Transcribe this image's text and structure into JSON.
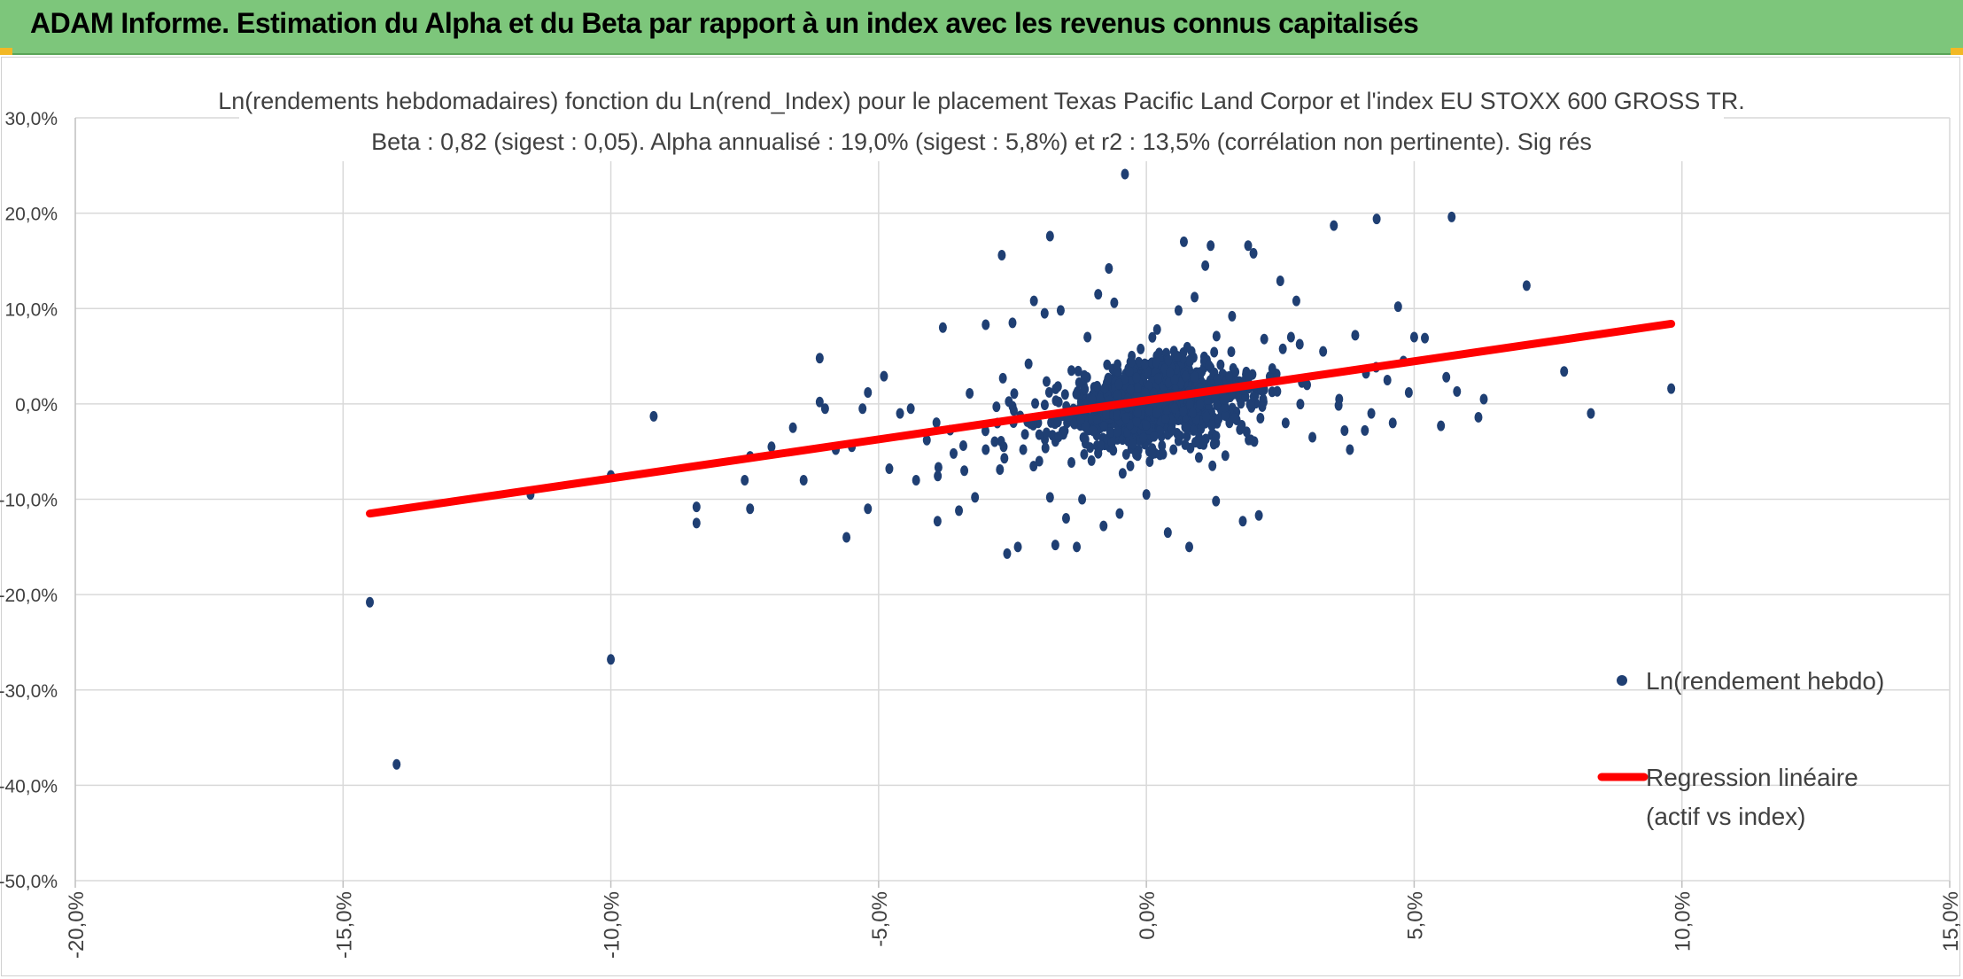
{
  "header": {
    "title": "ADAM Informe. Estimation du Alpha et du Beta par rapport à un index avec les revenus connus capitalisés"
  },
  "colors": {
    "banner": "#7dc67b",
    "points": "#1f3f73",
    "regression": "#ff0000",
    "grid": "#d9d9d9"
  },
  "chart_data": {
    "type": "scatter",
    "title": "Ln(rendements hebdomadaires) fonction du Ln(rend_Index) pour le placement Texas Pacific Land Corpor et l'index EU STOXX 600 GROSS TR.",
    "subtitle": "Beta : 0,82 (sigest : 0,05). Alpha annualisé : 19,0% (sigest : 5,8%) et r2 : 13,5% (corrélation non pertinente). Sig rés",
    "xlim": [
      -20,
      15
    ],
    "ylim": [
      -50,
      30
    ],
    "x_ticks": [
      "-20,0%",
      "-15,0%",
      "-10,0%",
      "-5,0%",
      "0,0%",
      "5,0%",
      "10,0%",
      "15,0%"
    ],
    "y_ticks": [
      "30,0%",
      "20,0%",
      "10,0%",
      "0,0%",
      "-10,0%",
      "-20,0%",
      "-30,0%",
      "-40,0%",
      "-50,0%"
    ],
    "grid": true,
    "legend_position": "right",
    "series": [
      {
        "name": "Ln(rendement hebdo)",
        "kind": "scatter",
        "points": [
          [
            -14.5,
            -20.8
          ],
          [
            -14.0,
            -37.8
          ],
          [
            -10.0,
            -26.8
          ],
          [
            -11.5,
            -9.5
          ],
          [
            -10.0,
            -7.5
          ],
          [
            -9.2,
            -1.3
          ],
          [
            -8.4,
            -10.8
          ],
          [
            -8.4,
            -12.5
          ],
          [
            -7.4,
            -11.0
          ],
          [
            -7.5,
            -8.0
          ],
          [
            -7.4,
            -5.5
          ],
          [
            -7.0,
            -4.5
          ],
          [
            -6.6,
            -2.5
          ],
          [
            -6.4,
            -8.0
          ],
          [
            -6.1,
            4.8
          ],
          [
            -6.1,
            0.2
          ],
          [
            -6.0,
            -0.5
          ],
          [
            -5.8,
            -4.8
          ],
          [
            -5.6,
            -14.0
          ],
          [
            -5.5,
            -4.5
          ],
          [
            -5.3,
            -0.5
          ],
          [
            -5.2,
            -11.0
          ],
          [
            -5.2,
            1.2
          ],
          [
            -4.9,
            2.9
          ],
          [
            -4.8,
            -6.8
          ],
          [
            -4.6,
            -1.0
          ],
          [
            -4.4,
            -0.5
          ],
          [
            -4.3,
            -8.0
          ],
          [
            -4.1,
            -3.8
          ],
          [
            -3.9,
            -12.3
          ],
          [
            -3.8,
            8.0
          ],
          [
            -3.6,
            -5.2
          ],
          [
            -3.5,
            -11.2
          ],
          [
            -3.4,
            -7.0
          ],
          [
            -3.3,
            1.1
          ],
          [
            -3.2,
            -9.8
          ],
          [
            -3.0,
            8.3
          ],
          [
            -3.0,
            -4.8
          ],
          [
            -2.8,
            -0.3
          ],
          [
            -2.7,
            15.6
          ],
          [
            -2.6,
            -15.7
          ],
          [
            -2.5,
            8.5
          ],
          [
            -2.4,
            -15.0
          ],
          [
            -2.3,
            -4.8
          ],
          [
            -2.2,
            4.2
          ],
          [
            -2.1,
            10.8
          ],
          [
            -2.0,
            -6.0
          ],
          [
            -1.9,
            9.5
          ],
          [
            -1.8,
            17.6
          ],
          [
            -1.8,
            -9.8
          ],
          [
            -1.7,
            -14.8
          ],
          [
            -1.6,
            9.8
          ],
          [
            -1.5,
            -12.0
          ],
          [
            -1.4,
            3.5
          ],
          [
            -1.3,
            -15.0
          ],
          [
            -1.2,
            -10.0
          ],
          [
            -1.1,
            7.0
          ],
          [
            -1.0,
            -1.5
          ],
          [
            -0.9,
            11.5
          ],
          [
            -0.8,
            -12.8
          ],
          [
            -0.7,
            14.2
          ],
          [
            -0.6,
            10.6
          ],
          [
            -0.5,
            -11.5
          ],
          [
            -0.4,
            24.1
          ],
          [
            -0.3,
            -6.5
          ],
          [
            -0.2,
            2.1
          ],
          [
            0.0,
            -9.5
          ],
          [
            0.2,
            7.8
          ],
          [
            0.3,
            -5.2
          ],
          [
            0.4,
            -13.5
          ],
          [
            0.6,
            9.8
          ],
          [
            0.7,
            17.0
          ],
          [
            0.8,
            -15.0
          ],
          [
            0.9,
            11.2
          ],
          [
            1.0,
            -4.2
          ],
          [
            1.1,
            14.5
          ],
          [
            1.2,
            16.6
          ],
          [
            1.3,
            -10.2
          ],
          [
            1.5,
            2.0
          ],
          [
            1.6,
            9.2
          ],
          [
            1.8,
            -12.3
          ],
          [
            1.9,
            16.6
          ],
          [
            2.0,
            15.8
          ],
          [
            2.1,
            -11.7
          ],
          [
            2.2,
            6.8
          ],
          [
            2.4,
            3.1
          ],
          [
            2.5,
            12.9
          ],
          [
            2.6,
            -2.0
          ],
          [
            2.7,
            7.0
          ],
          [
            2.8,
            10.8
          ],
          [
            3.0,
            2.0
          ],
          [
            3.1,
            -3.5
          ],
          [
            3.3,
            5.5
          ],
          [
            3.5,
            18.7
          ],
          [
            3.6,
            0.5
          ],
          [
            3.7,
            -2.8
          ],
          [
            3.8,
            -4.8
          ],
          [
            3.9,
            7.2
          ],
          [
            4.1,
            3.2
          ],
          [
            4.2,
            -1.0
          ],
          [
            4.3,
            19.4
          ],
          [
            4.5,
            2.5
          ],
          [
            4.6,
            -2.0
          ],
          [
            4.7,
            10.2
          ],
          [
            4.8,
            4.5
          ],
          [
            4.9,
            1.2
          ],
          [
            5.0,
            7.0
          ],
          [
            5.2,
            6.9
          ],
          [
            5.5,
            -2.3
          ],
          [
            5.6,
            2.8
          ],
          [
            5.7,
            19.6
          ],
          [
            5.8,
            1.3
          ],
          [
            6.2,
            -1.4
          ],
          [
            6.3,
            0.5
          ],
          [
            7.1,
            12.4
          ],
          [
            7.8,
            3.4
          ],
          [
            8.3,
            -1.0
          ],
          [
            9.8,
            1.6
          ],
          [
            0.5,
            0.4
          ],
          [
            0.1,
            -0.3
          ],
          [
            -0.3,
            0.8
          ],
          [
            0.8,
            1.5
          ],
          [
            1.4,
            -0.7
          ],
          [
            -1.2,
            -2.0
          ],
          [
            2.1,
            1.9
          ],
          [
            -0.7,
            -1.1
          ]
        ]
      },
      {
        "name": "Regression linéaire (actif vs index)",
        "kind": "line",
        "points": [
          [
            -14.5,
            -11.5
          ],
          [
            9.8,
            8.4
          ]
        ]
      }
    ],
    "legend": [
      {
        "label": "Ln(rendement hebdo)",
        "marker": "dot"
      },
      {
        "label": "Regression linéaire",
        "label_line2": "(actif vs index)",
        "marker": "line"
      }
    ]
  }
}
